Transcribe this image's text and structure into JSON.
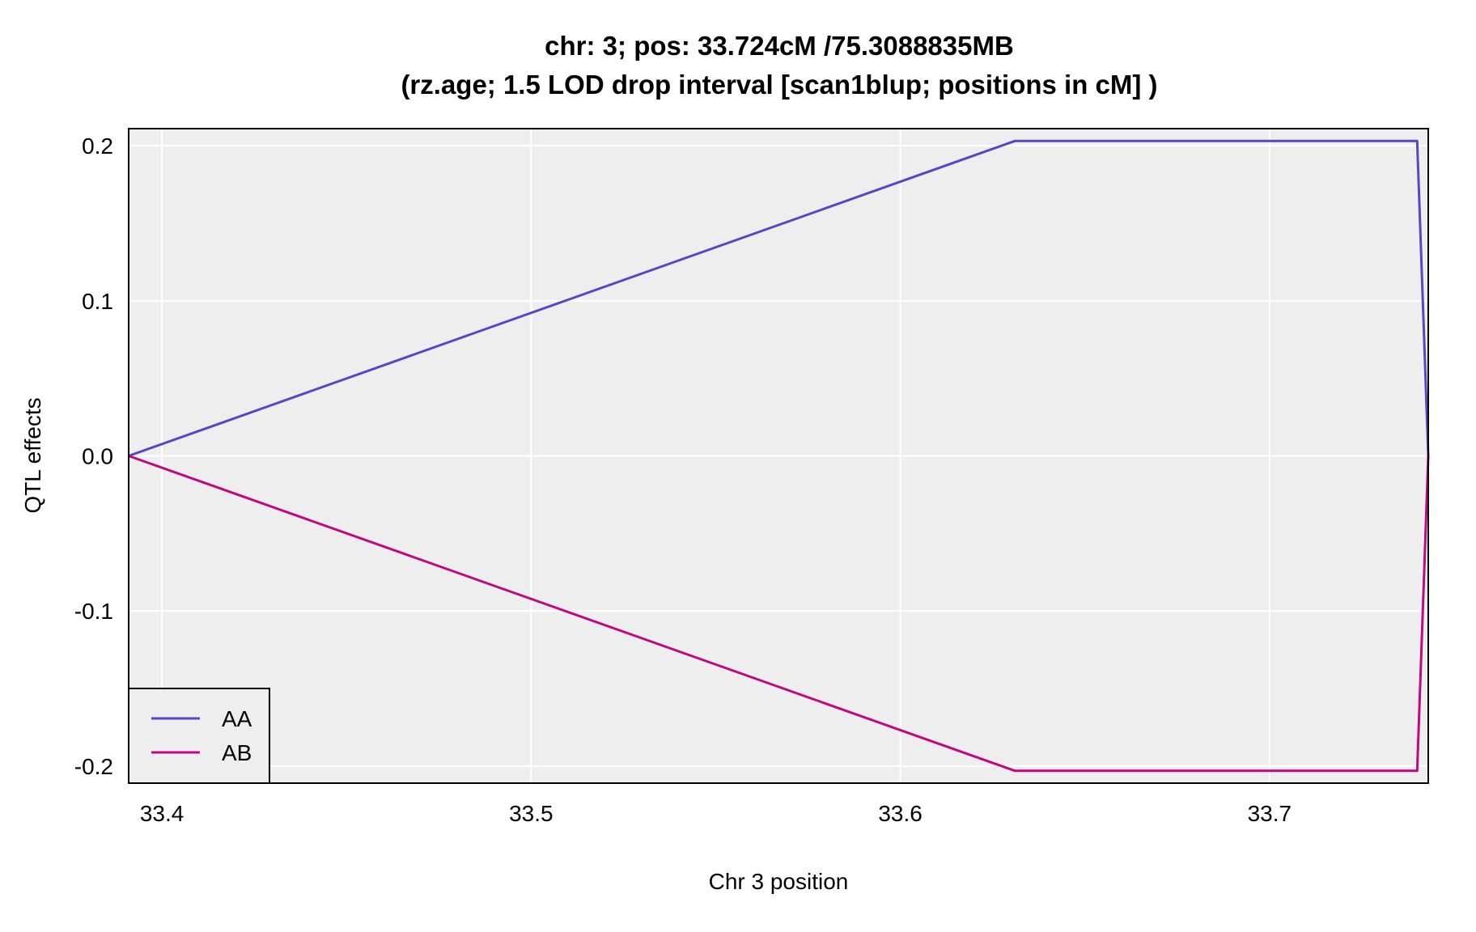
{
  "chart_data": {
    "type": "line",
    "title": "chr: 3; pos: 33.724cM /75.3088835MB",
    "subtitle": "(rz.age; 1.5 LOD drop interval [scan1blup; positions in cM] )",
    "xlabel": "Chr 3 position",
    "ylabel": "QTL effects",
    "xlim": [
      33.391,
      33.743
    ],
    "ylim": [
      -0.211,
      0.211
    ],
    "xticks": [
      33.4,
      33.5,
      33.6,
      33.7
    ],
    "xtick_labels": [
      "33.4",
      "33.5",
      "33.6",
      "33.7"
    ],
    "yticks": [
      -0.2,
      -0.1,
      0.0,
      0.1,
      0.2
    ],
    "ytick_labels": [
      "-0.2",
      "-0.1",
      "0.0",
      "0.1",
      "0.2"
    ],
    "grid": true,
    "legend_position": "bottom-left",
    "series": [
      {
        "name": "AA",
        "color": "#5B45C2",
        "x": [
          33.391,
          33.631,
          33.72,
          33.74,
          33.743
        ],
        "y": [
          0.0,
          0.203,
          0.203,
          0.203,
          0.0
        ]
      },
      {
        "name": "AB",
        "color": "#C0097F",
        "x": [
          33.391,
          33.631,
          33.72,
          33.74,
          33.743
        ],
        "y": [
          0.0,
          -0.203,
          -0.203,
          -0.203,
          0.0
        ]
      }
    ],
    "colors": {
      "panel_background": "#EFEEEF",
      "grid": "#FFFFFF",
      "frame": "#000000"
    }
  }
}
